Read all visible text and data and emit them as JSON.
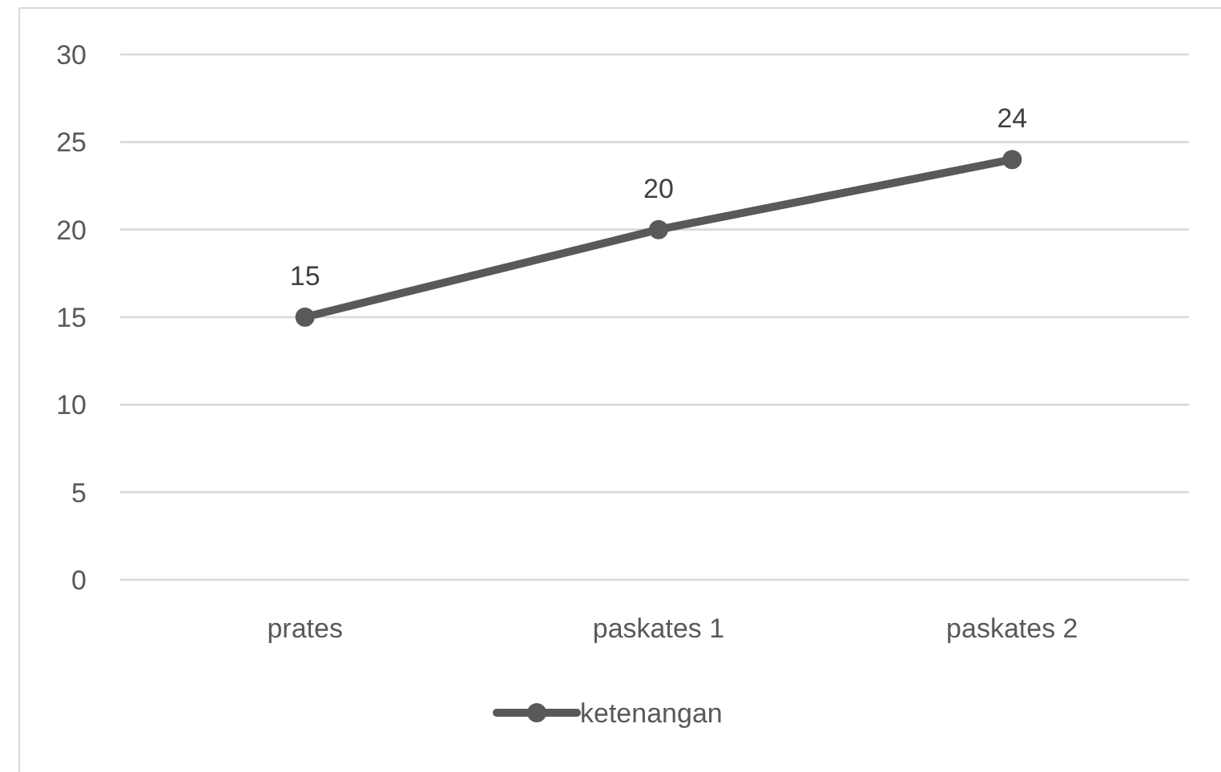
{
  "chart_data": {
    "type": "line",
    "categories": [
      "prates",
      "paskates 1",
      "paskates 2"
    ],
    "series": [
      {
        "name": "ketenangan",
        "color": "#595959",
        "values": [
          15,
          20,
          24
        ]
      }
    ],
    "ylim": [
      0,
      30
    ],
    "yticks": [
      0,
      5,
      10,
      15,
      20,
      25,
      30
    ],
    "grid": "y",
    "legend": "bottom",
    "marker": "circle",
    "data_labels": true
  }
}
